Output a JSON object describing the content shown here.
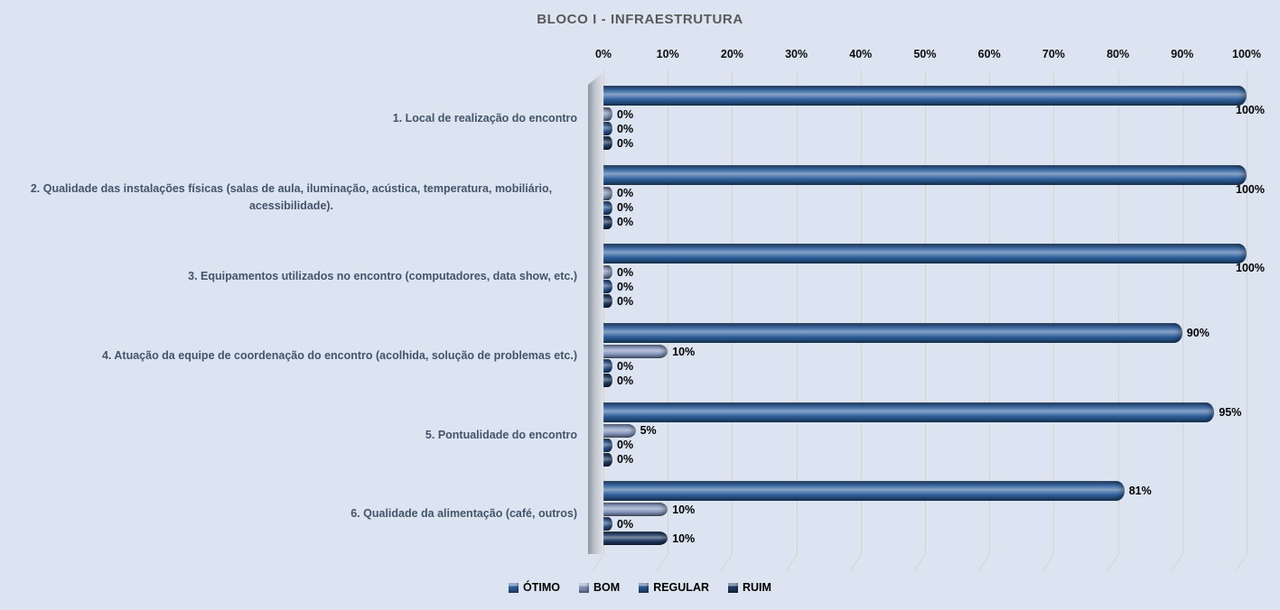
{
  "title": "BLOCO I - INFRAESTRUTURA",
  "colors": {
    "background": "#dbe4f0",
    "gridline": "#d7d2ca",
    "title_text": "#595959",
    "category_text": "#44546a",
    "label_text": "#000000"
  },
  "chart_data": {
    "type": "bar",
    "orientation": "horizontal",
    "title": "BLOCO I - INFRAESTRUTURA",
    "xlabel": "",
    "ylabel": "",
    "xlim": [
      0,
      100
    ],
    "grid": true,
    "legend_position": "bottom",
    "x_axis": {
      "position": "top",
      "ticks": [
        "0%",
        "10%",
        "20%",
        "30%",
        "40%",
        "50%",
        "60%",
        "70%",
        "80%",
        "90%",
        "100%"
      ],
      "tick_values": [
        0,
        10,
        20,
        30,
        40,
        50,
        60,
        70,
        80,
        90,
        100
      ]
    },
    "categories": [
      "1. Local de realização do encontro",
      "2. Qualidade das instalações físicas (salas de aula, iluminação, acústica, temperatura, mobiliário, acessibilidade).",
      "3. Equipamentos utilizados no encontro (computadores, data show, etc.)",
      "4. Atuação da equipe de coordenação do encontro (acolhida, solução de problemas etc.)",
      "5. Pontualidade do encontro",
      "6. Qualidade da alimentação (café, outros)"
    ],
    "series": [
      {
        "name": "ÓTIMO",
        "color": "#2e5f9c",
        "values": [
          100,
          100,
          100,
          90,
          95,
          81
        ],
        "labels": [
          "100%",
          "100%",
          "100%",
          "90%",
          "95%",
          "81%"
        ]
      },
      {
        "name": "BOM",
        "color": "#8494bc",
        "values": [
          0,
          0,
          0,
          10,
          5,
          10
        ],
        "labels": [
          "0%",
          "0%",
          "0%",
          "10%",
          "5%",
          "10%"
        ]
      },
      {
        "name": "REGULAR",
        "color": "#2b5590",
        "values": [
          0,
          0,
          0,
          0,
          0,
          0
        ],
        "labels": [
          "0%",
          "0%",
          "0%",
          "0%",
          "0%",
          "0%"
        ]
      },
      {
        "name": "RUIM",
        "color": "#1e3a61",
        "values": [
          0,
          0,
          0,
          0,
          0,
          10
        ],
        "labels": [
          "0%",
          "0%",
          "0%",
          "0%",
          "0%",
          "10%"
        ]
      }
    ],
    "data_labels": true
  }
}
